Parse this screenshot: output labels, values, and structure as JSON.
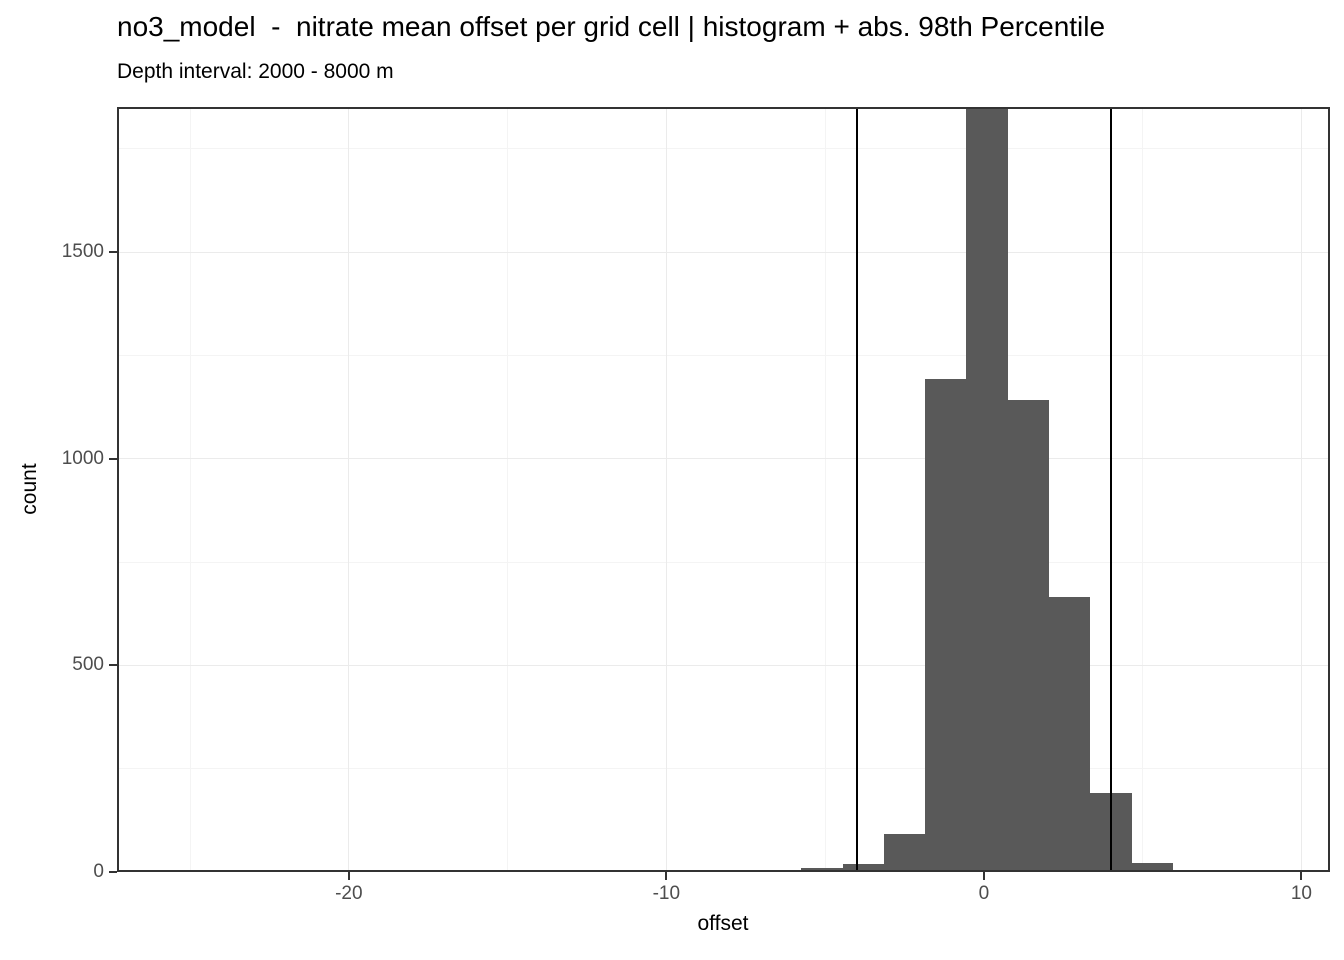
{
  "title": "no3_model  -  nitrate mean offset per grid cell | histogram + abs. 98th Percentile",
  "subtitle": "Depth interval: 2000 - 8000 m",
  "chart_data": {
    "type": "bar",
    "subtype": "histogram",
    "title": "no3_model  -  nitrate mean offset per grid cell | histogram + abs. 98th Percentile",
    "subtitle": "Depth interval: 2000 - 8000 m",
    "xlabel": "offset",
    "ylabel": "count",
    "xlim": [
      -27.3,
      10.9
    ],
    "ylim": [
      0,
      1851
    ],
    "x_ticks": [
      {
        "value": -20,
        "label": "-20"
      },
      {
        "value": -10,
        "label": "-10"
      },
      {
        "value": 0,
        "label": "0"
      },
      {
        "value": 10,
        "label": "10"
      }
    ],
    "y_ticks": [
      {
        "value": 0,
        "label": "0"
      },
      {
        "value": 500,
        "label": "500"
      },
      {
        "value": 1000,
        "label": "1000"
      },
      {
        "value": 1500,
        "label": "1500"
      }
    ],
    "x_minor_gridlines": [
      -25,
      -15,
      -5,
      5
    ],
    "y_minor_gridlines": [
      250,
      750,
      1250,
      1750
    ],
    "grid": true,
    "legend_position": "none",
    "binwidth": 1.3,
    "bins": [
      {
        "center": -9.0,
        "count": 5
      },
      {
        "center": -7.7,
        "count": 2
      },
      {
        "center": -6.4,
        "count": 2
      },
      {
        "center": -5.1,
        "count": 10
      },
      {
        "center": -3.8,
        "count": 19
      },
      {
        "center": -2.5,
        "count": 91
      },
      {
        "center": -1.2,
        "count": 1192
      },
      {
        "center": 0.1,
        "count": 1950,
        "clipped_at_panel_top": true
      },
      {
        "center": 1.4,
        "count": 1142
      },
      {
        "center": 2.7,
        "count": 666
      },
      {
        "center": 4.0,
        "count": 191
      },
      {
        "center": 5.3,
        "count": 22
      },
      {
        "center": 6.6,
        "count": 0
      },
      {
        "center": 7.9,
        "count": 6
      }
    ],
    "vlines": [
      {
        "x": -4.0,
        "label": "abs. 98th percentile (negative)"
      },
      {
        "x": 4.0,
        "label": "abs. 98th percentile (positive)"
      }
    ],
    "colors": {
      "bar_fill": "#595959",
      "panel_border": "#333333",
      "grid_major": "#ebebeb",
      "grid_minor": "#f4f4f4",
      "tick_label": "#4d4d4d",
      "tick_mark": "#333333",
      "vline": "#000000",
      "text": "#000000",
      "background": "#ffffff"
    }
  }
}
